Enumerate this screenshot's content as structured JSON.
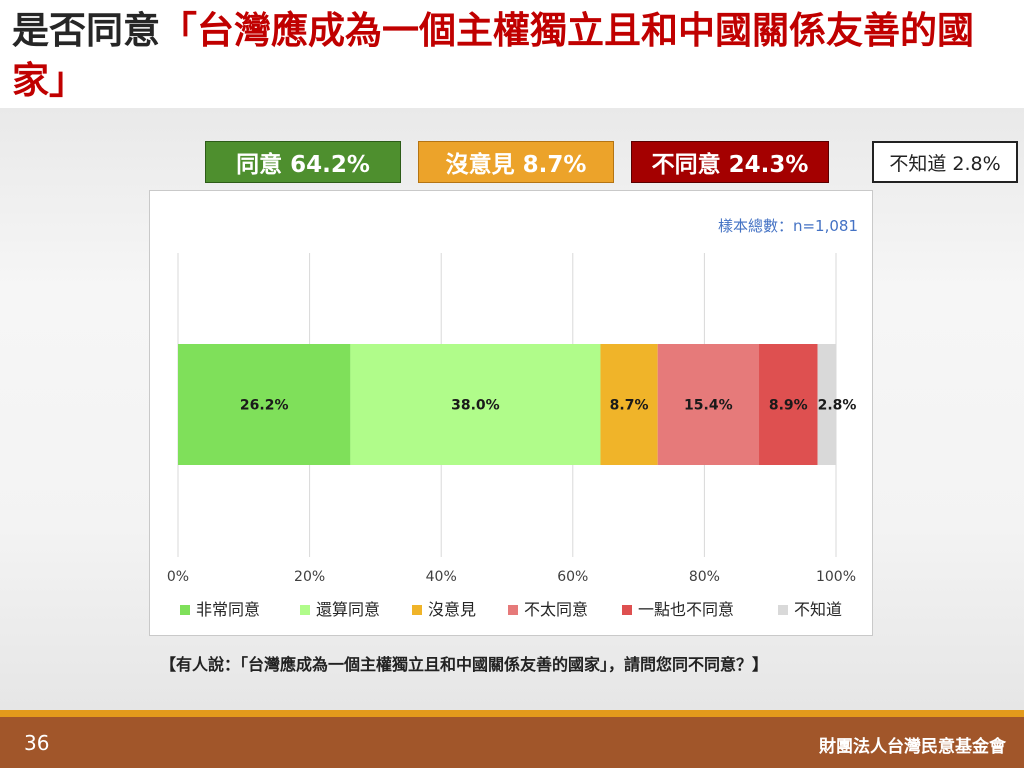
{
  "slide": {
    "title_prefix": "是否同意",
    "title_quote": "「台灣應成為一個主權獨立且和中國關係友善的國家」",
    "summary": [
      {
        "label": "同意 64.2%",
        "color": "#4e8f2e"
      },
      {
        "label": "沒意見 8.7%",
        "color": "#eca32a"
      },
      {
        "label": "不同意 24.3%",
        "color": "#a40000"
      },
      {
        "label": "不知道 2.8%",
        "color": "#ffffff"
      }
    ],
    "question": "【有人說：「台灣應成為一個主權獨立且和中國關係友善的國家」，請問您同不同意？】",
    "page_number": "36",
    "organization": "財團法人台灣民意基金會"
  },
  "chart_data": {
    "type": "bar",
    "orientation": "horizontal",
    "stacked": true,
    "sample_note": "樣本總數：n=1,081",
    "categories": [
      ""
    ],
    "series": [
      {
        "name": "非常同意",
        "values": [
          26.2
        ],
        "label": "26.2%",
        "color": "#7fe05a"
      },
      {
        "name": "還算同意",
        "values": [
          38.0
        ],
        "label": "38.0%",
        "color": "#b0fc8a"
      },
      {
        "name": "沒意見",
        "values": [
          8.7
        ],
        "label": "8.7%",
        "color": "#f0b429"
      },
      {
        "name": "不太同意",
        "values": [
          15.4
        ],
        "label": "15.4%",
        "color": "#e67a7a"
      },
      {
        "name": "一點也不同意",
        "values": [
          8.9
        ],
        "label": "8.9%",
        "color": "#de5050"
      },
      {
        "name": "不知道",
        "values": [
          2.8
        ],
        "label": "2.8%",
        "color": "#d9d9d9"
      }
    ],
    "x_ticks": [
      "0%",
      "20%",
      "40%",
      "60%",
      "80%",
      "100%"
    ],
    "xlim": [
      0,
      100
    ],
    "grid": "vertical",
    "legend_position": "bottom"
  }
}
